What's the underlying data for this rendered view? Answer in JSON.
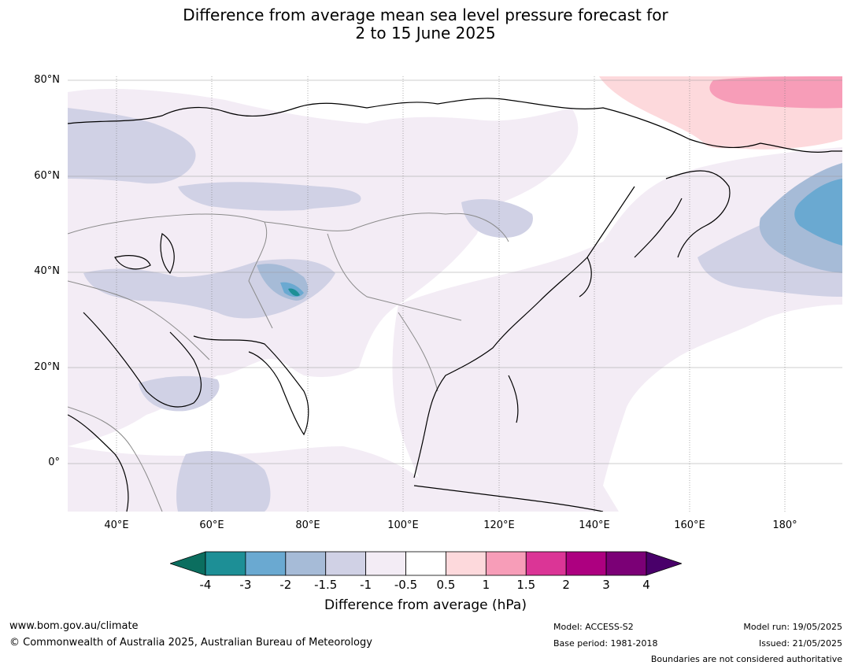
{
  "title": {
    "line1": "Difference from average mean sea level pressure forecast for",
    "line2": "2 to 15 June 2025"
  },
  "map": {
    "lat_labels": [
      "80°N",
      "60°N",
      "40°N",
      "20°N",
      "0°"
    ],
    "lon_labels": [
      "40°E",
      "60°E",
      "80°E",
      "100°E",
      "120°E",
      "140°E",
      "160°E",
      "180°"
    ]
  },
  "colorbar": {
    "title": "Difference from average (hPa)",
    "tick_labels": [
      "-4",
      "-3",
      "-2",
      "-1.5",
      "-1",
      "-0.5",
      "0.5",
      "1",
      "1.5",
      "2",
      "3",
      "4"
    ],
    "colors": [
      "#1d8f96",
      "#6aa9d1",
      "#a6bbd7",
      "#d0d1e5",
      "#f3ecf5",
      "#ffffff",
      "#fdd9dc",
      "#f79db8",
      "#db3596",
      "#ad0080",
      "#7b0076"
    ],
    "extend_low_color": "#0b6e5f",
    "extend_high_color": "#49006a"
  },
  "footer": {
    "url": "www.bom.gov.au/climate",
    "copyright": "© Commonwealth of Australia 2025, Australian Bureau of Meteorology",
    "model": "Model: ACCESS-S2",
    "base_period": "Base period: 1981-2018",
    "model_run": "Model run: 19/05/2025",
    "issued": "Issued: 21/05/2025",
    "disclaimer": "Boundaries are not considered authoritative"
  }
}
